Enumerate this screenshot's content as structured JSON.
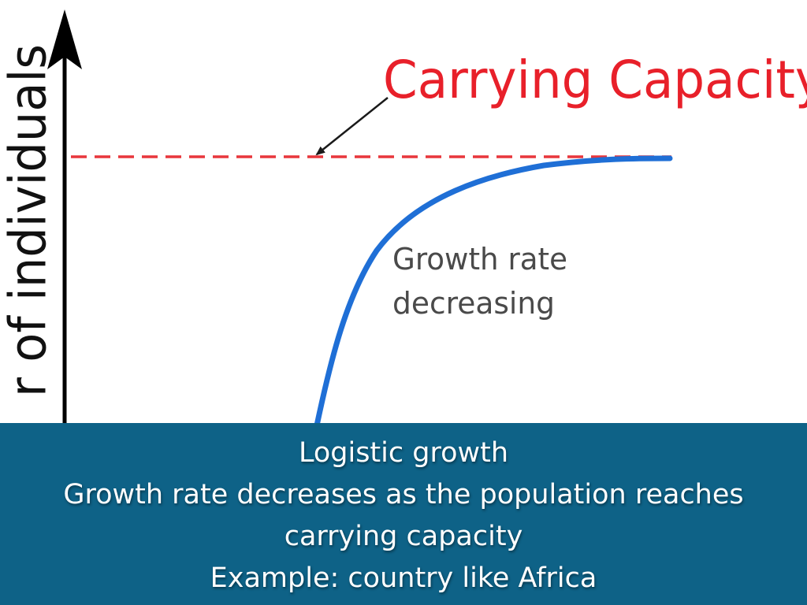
{
  "graph": {
    "y_axis_label_fragment": "r of individuals",
    "annotation_carrying_capacity": "Carrying Capacity",
    "annotation_growth_line1": "Growth rate",
    "annotation_growth_line2": "decreasing",
    "colors": {
      "axis": "#000000",
      "capacity_line": "#e8363c",
      "capacity_text": "#e8202a",
      "curve": "#1f6fd6",
      "annotation_text": "#4a4a4a"
    }
  },
  "caption": {
    "line1": "Logistic growth",
    "line2": "Growth rate decreases as the population reaches",
    "line3": "carrying capacity",
    "line4": "Example: country like Africa",
    "background_color": "#0e6287"
  }
}
